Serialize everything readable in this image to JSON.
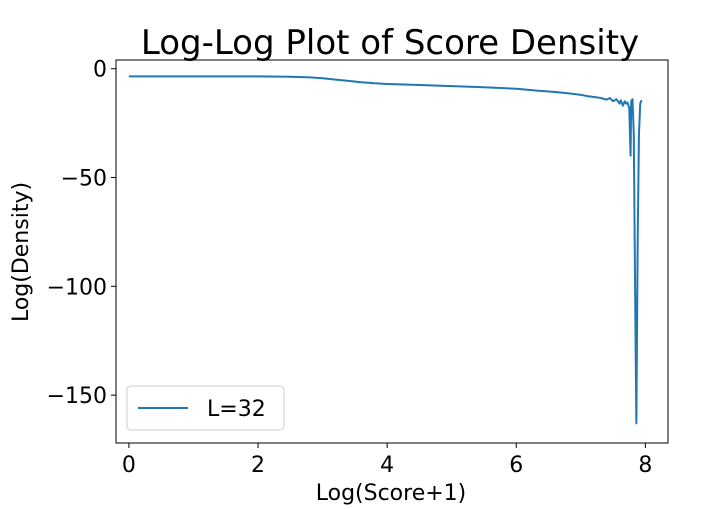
{
  "chart_data": {
    "type": "line",
    "title": "Log-Log Plot of Score Density",
    "xlabel": "Log(Score+1)",
    "ylabel": "Log(Density)",
    "xlim": [
      -0.2,
      8.35
    ],
    "ylim": [
      -172,
      4
    ],
    "xticks": [
      0,
      2,
      4,
      6,
      8
    ],
    "yticks": [
      0,
      -50,
      -100,
      -150
    ],
    "xtick_labels": [
      "0",
      "2",
      "4",
      "6",
      "8"
    ],
    "ytick_labels": [
      "0",
      "−50",
      "−100",
      "−150"
    ],
    "grid": false,
    "legend_position": "lower-left",
    "series": [
      {
        "name": "L=32",
        "color": "#1f77b4",
        "x": [
          0,
          0.5,
          1.0,
          1.5,
          2.0,
          2.5,
          2.8,
          3.0,
          3.2,
          3.4,
          3.6,
          3.8,
          4.0,
          4.2,
          4.5,
          5.0,
          5.5,
          6.0,
          6.3,
          6.6,
          6.8,
          7.0,
          7.1,
          7.2,
          7.3,
          7.35,
          7.4,
          7.45,
          7.5,
          7.55,
          7.6,
          7.62,
          7.65,
          7.68,
          7.7,
          7.72,
          7.75,
          7.77,
          7.78,
          7.8,
          7.82,
          7.84,
          7.86,
          7.88,
          7.9,
          7.92,
          7.94
        ],
        "values": [
          -3.5,
          -3.5,
          -3.5,
          -3.5,
          -3.5,
          -3.7,
          -4.0,
          -4.4,
          -5.0,
          -5.6,
          -6.2,
          -6.7,
          -7.0,
          -7.2,
          -7.5,
          -8.0,
          -8.5,
          -9.2,
          -10.0,
          -10.7,
          -11.3,
          -12.0,
          -12.6,
          -13.0,
          -13.4,
          -13.8,
          -14.2,
          -13.5,
          -15.0,
          -14.0,
          -16.0,
          -14.5,
          -17.0,
          -15.0,
          -16.0,
          -15.5,
          -18.0,
          -40.0,
          -15.0,
          -14.0,
          -30.0,
          -100.0,
          -163.0,
          -80.0,
          -30.0,
          -16.0,
          -14.5
        ]
      }
    ]
  }
}
